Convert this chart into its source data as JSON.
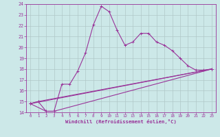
{
  "xlabel": "Windchill (Refroidissement éolien,°C)",
  "background_color": "#cce8e8",
  "line_color": "#993399",
  "grid_color": "#b0c8c8",
  "xlim": [
    -0.5,
    23.5
  ],
  "ylim": [
    14,
    24
  ],
  "xticks": [
    0,
    1,
    2,
    3,
    4,
    5,
    6,
    7,
    8,
    9,
    10,
    11,
    12,
    13,
    14,
    15,
    16,
    17,
    18,
    19,
    20,
    21,
    22,
    23
  ],
  "yticks": [
    14,
    15,
    16,
    17,
    18,
    19,
    20,
    21,
    22,
    23,
    24
  ],
  "series1_x": [
    0,
    1,
    2,
    3,
    4,
    5,
    6,
    7,
    8,
    9,
    10,
    11,
    12,
    13,
    14,
    15,
    16,
    17,
    18,
    19,
    20,
    21,
    22,
    23
  ],
  "series1_y": [
    14.8,
    15.0,
    14.1,
    14.1,
    16.6,
    16.6,
    17.8,
    19.5,
    22.1,
    23.8,
    23.3,
    21.6,
    20.2,
    20.5,
    21.3,
    21.3,
    20.5,
    20.2,
    19.7,
    19.0,
    18.3,
    17.9,
    17.9,
    18.0
  ],
  "series2_x": [
    0,
    2,
    3,
    23
  ],
  "series2_y": [
    14.8,
    14.1,
    14.1,
    18.0
  ],
  "series3_x": [
    0,
    1,
    23
  ],
  "series3_y": [
    14.8,
    15.0,
    18.0
  ],
  "series4_x": [
    0,
    23
  ],
  "series4_y": [
    14.8,
    18.0
  ]
}
